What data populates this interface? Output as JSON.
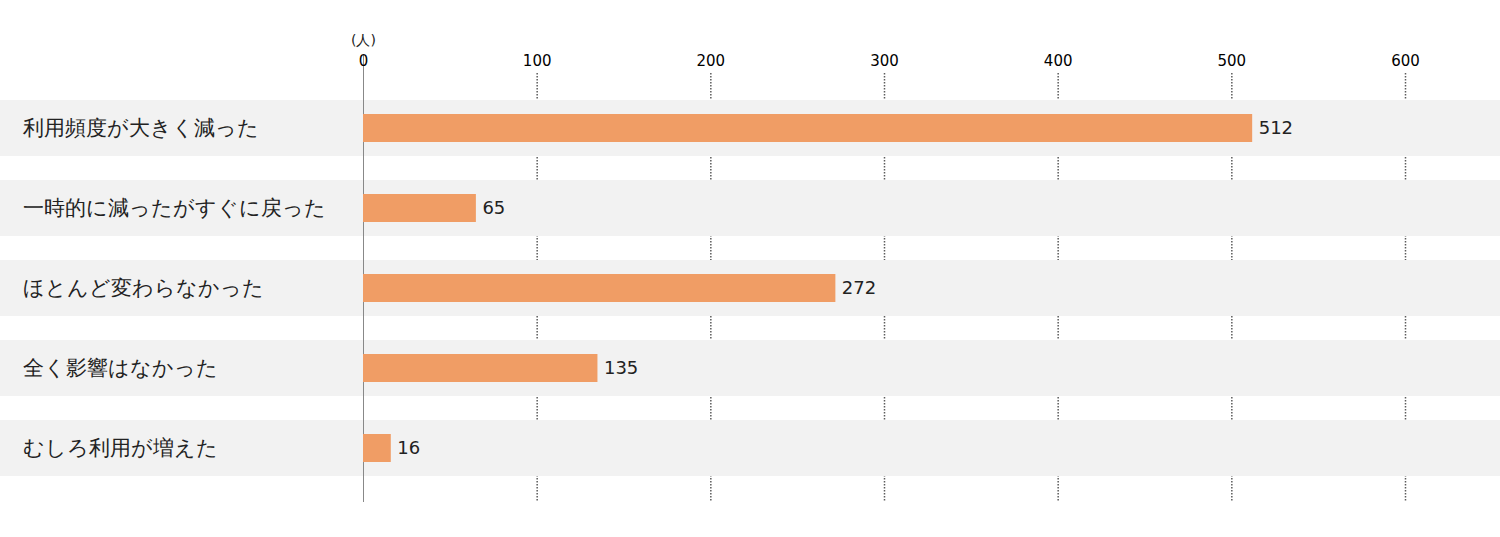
{
  "chart_data": {
    "type": "bar",
    "orientation": "horizontal",
    "x_label": "(人)",
    "categories": [
      "利用頻度が大きく減った",
      "一時的に減ったがすぐに戻った",
      "ほとんど変わらなかった",
      "全く影響はなかった",
      "むしろ利用が増えた"
    ],
    "values": [
      512,
      65,
      272,
      135,
      16
    ],
    "color": "#f09d65",
    "xlim": [
      0,
      600
    ],
    "xticks": [
      0,
      100,
      200,
      300,
      400,
      500,
      600
    ],
    "grid": true,
    "data_labels": true
  }
}
